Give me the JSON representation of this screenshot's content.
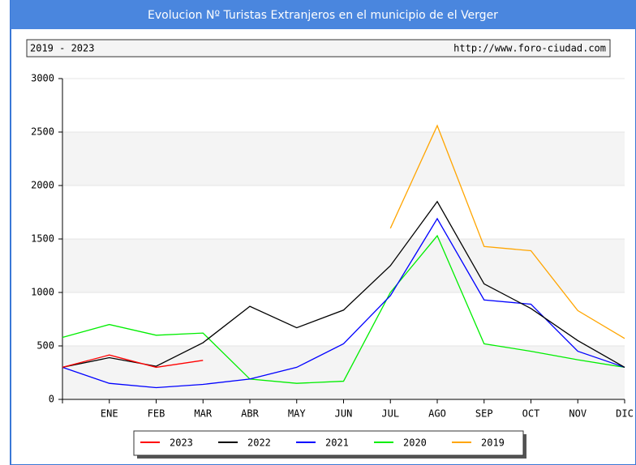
{
  "chart_data": {
    "type": "line",
    "title": "Evolucion Nº Turistas Extranjeros en el municipio de el Verger",
    "subtitle": "2019 - 2023",
    "source": "http://www.foro-ciudad.com",
    "categories": [
      null,
      "ENE",
      "FEB",
      "MAR",
      "ABR",
      "MAY",
      "JUN",
      "JUL",
      "AGO",
      "SEP",
      "OCT",
      "NOV",
      "DIC"
    ],
    "series": [
      {
        "name": "2023",
        "color": "#ff0000",
        "values": [
          300,
          415,
          300,
          365,
          null,
          null,
          null,
          null,
          null,
          null,
          null,
          null,
          null
        ]
      },
      {
        "name": "2022",
        "color": "#000000",
        "values": [
          300,
          390,
          310,
          530,
          870,
          670,
          835,
          1250,
          1850,
          1080,
          850,
          550,
          300
        ]
      },
      {
        "name": "2021",
        "color": "#0000ff",
        "values": [
          300,
          150,
          110,
          140,
          190,
          300,
          520,
          970,
          1690,
          930,
          890,
          450,
          300
        ]
      },
      {
        "name": "2020",
        "color": "#00ee00",
        "values": [
          580,
          700,
          600,
          620,
          190,
          150,
          170,
          1000,
          1530,
          520,
          450,
          370,
          300
        ]
      },
      {
        "name": "2019",
        "color": "#ffa500",
        "values": [
          null,
          null,
          null,
          null,
          null,
          null,
          null,
          1600,
          2560,
          1430,
          1390,
          830,
          570
        ]
      }
    ],
    "ylim": [
      0,
      3000
    ],
    "yticks": [
      0,
      500,
      1000,
      1500,
      2000,
      2500,
      3000
    ],
    "grid": true
  }
}
